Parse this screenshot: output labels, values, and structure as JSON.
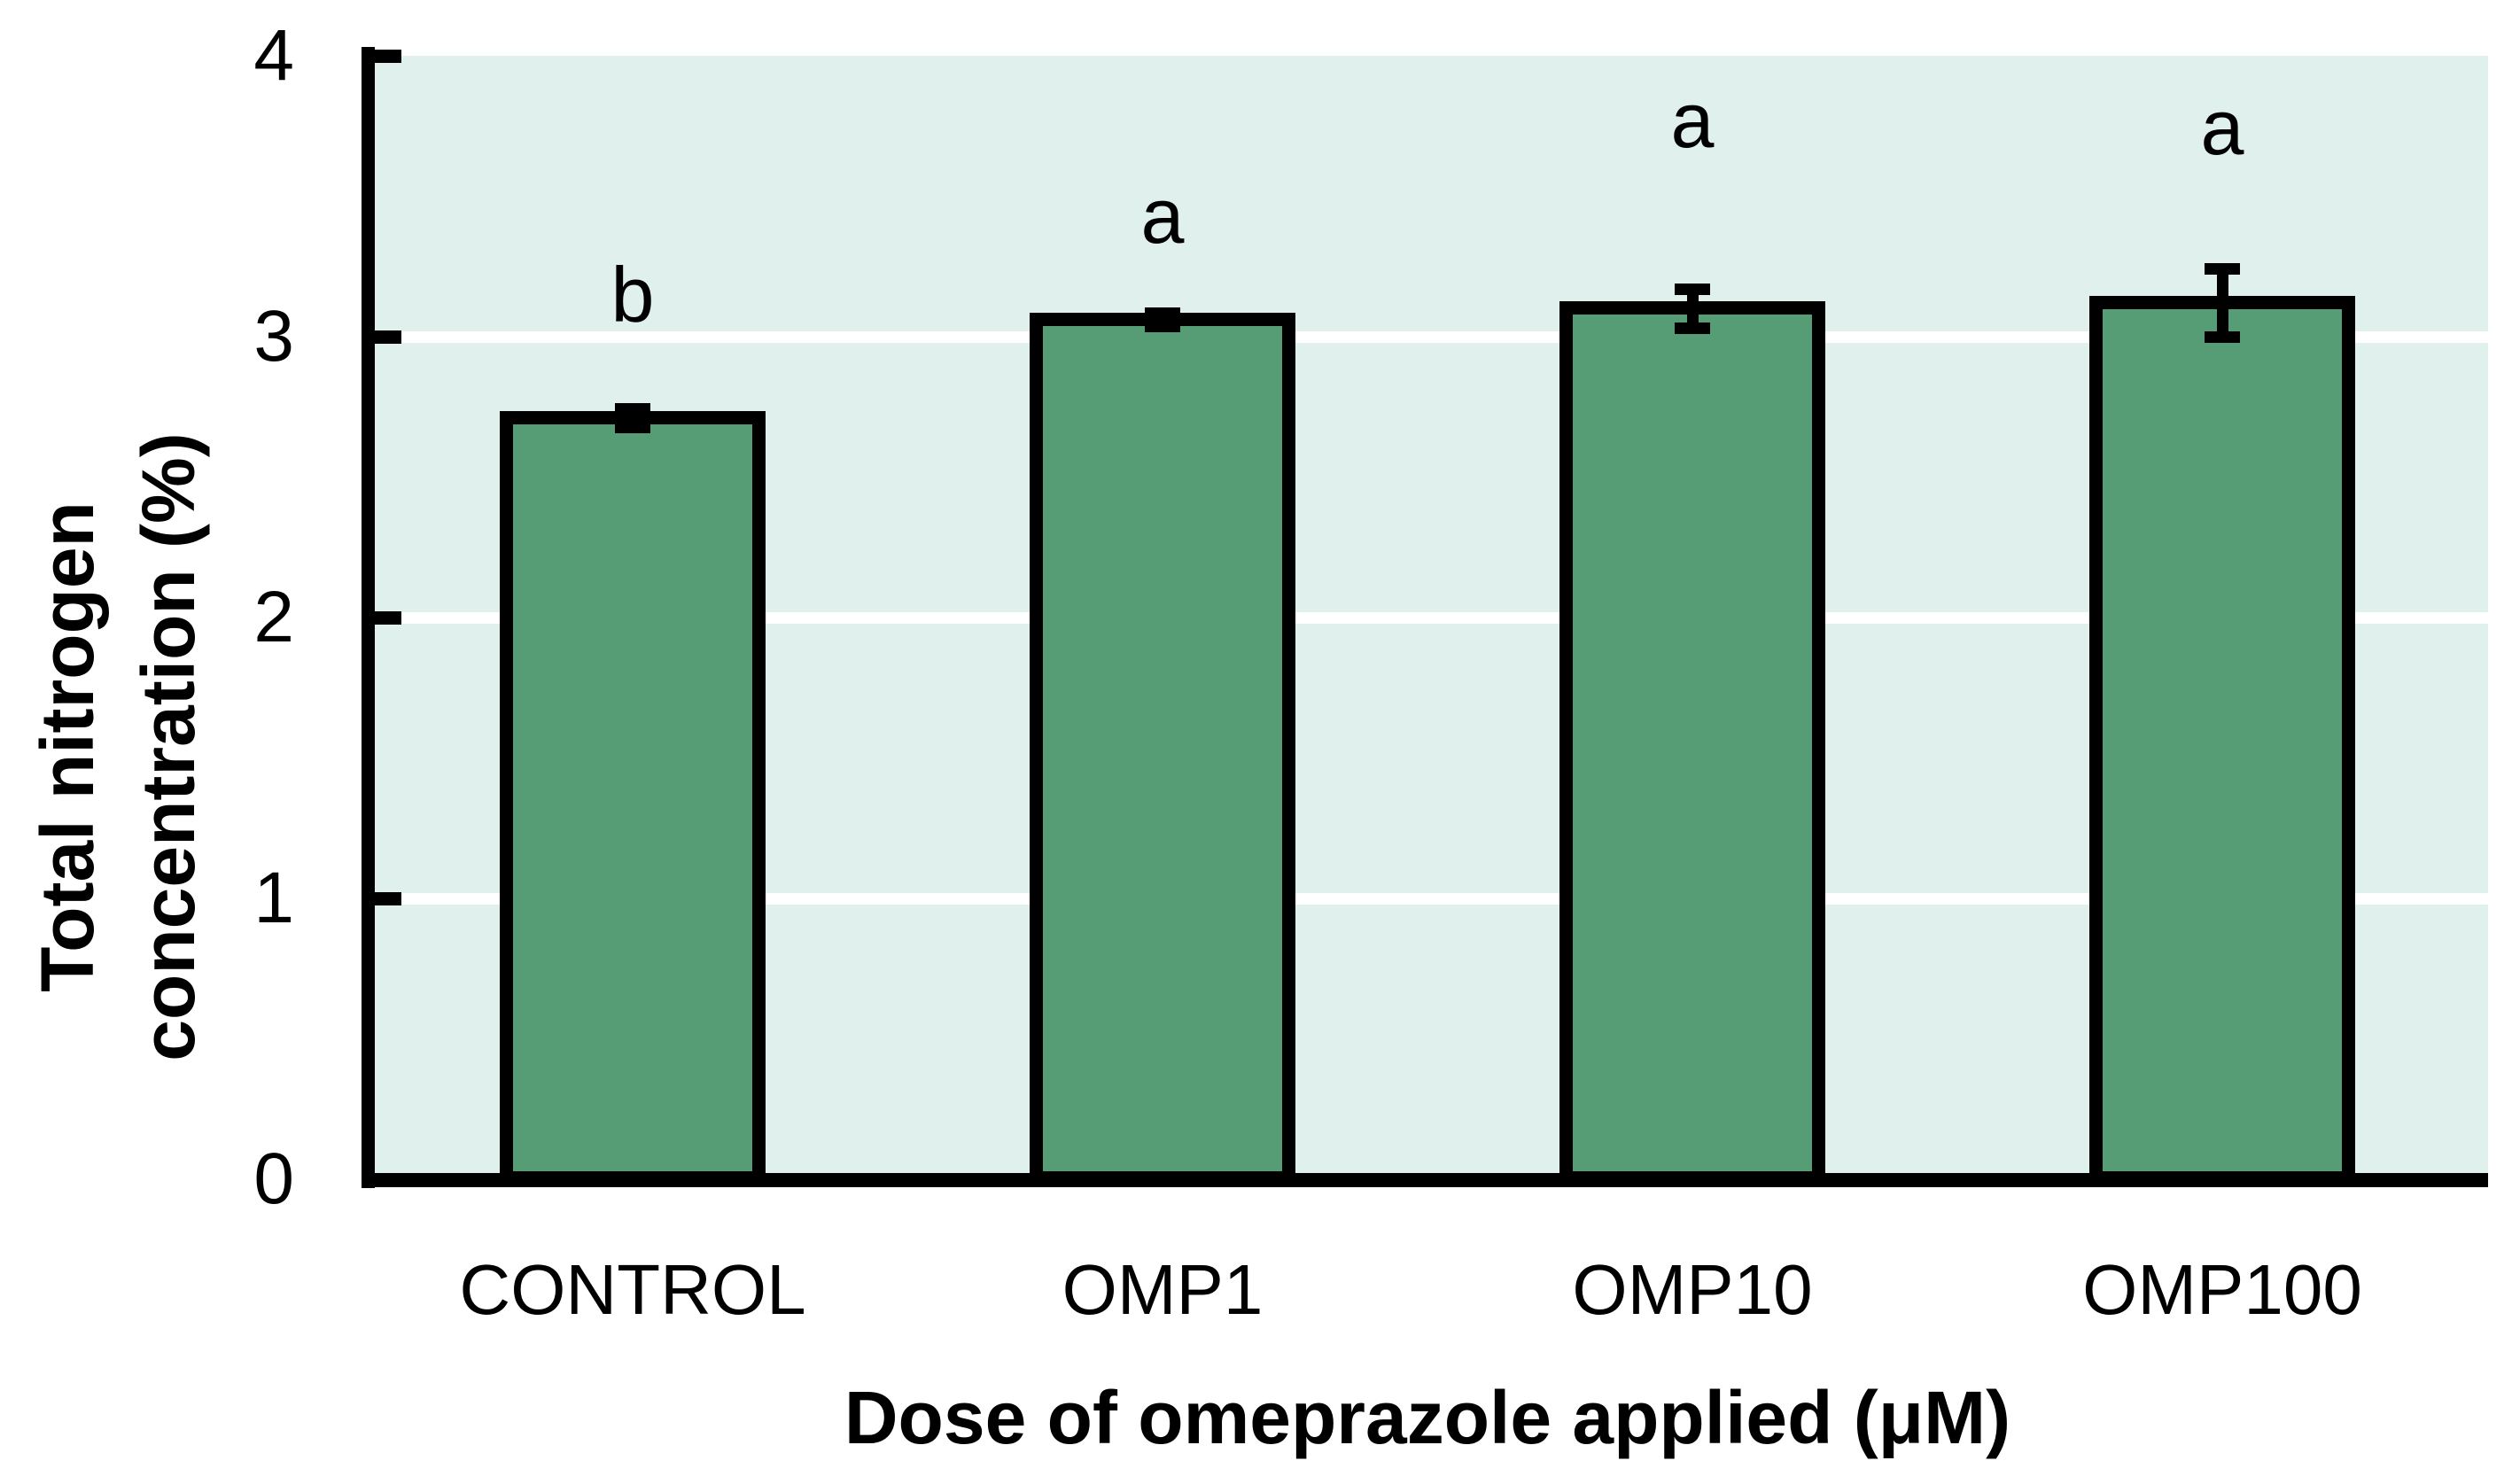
{
  "figure": {
    "background_color": "#ffffff",
    "plot_background_color": "#e0f0ed",
    "bar_fill_color": "#569c74",
    "bar_border_color": "#000000",
    "gridline_color": "#ffffff",
    "axis_color": "#000000",
    "text_color": "#000000"
  },
  "chart_data": {
    "type": "bar",
    "title": "",
    "xlabel": "Dose of omeprazole applied (μM)",
    "ylabel": "Total nitrogen concentration (%)",
    "ylabel_lines": [
      "Total nitrogen",
      "concentration (%)"
    ],
    "categories": [
      "CONTROL",
      "OMP1",
      "OMP10",
      "OMP100"
    ],
    "values": [
      2.71,
      3.06,
      3.1,
      3.12
    ],
    "error_bars": [
      0.033,
      0.025,
      0.07,
      0.12
    ],
    "significance_letters": [
      "b",
      "a",
      "a",
      "a"
    ],
    "ylim": [
      0,
      4
    ],
    "yticks": [
      0,
      1,
      2,
      3,
      4
    ],
    "ytick_labels": [
      "0",
      "1",
      "2",
      "3",
      "4"
    ],
    "grid": "horizontal white lines at y = 1, 2, 3",
    "legend_position": "none",
    "bar_width_fraction": 0.5,
    "error_bar_style": "black caps, centered on bar tops"
  }
}
